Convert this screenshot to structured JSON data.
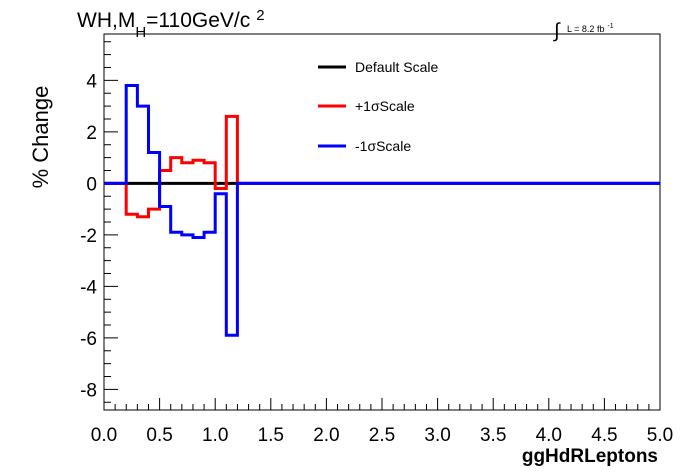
{
  "chart_data": {
    "type": "line",
    "title_main": "WH,M",
    "title_sub": "H",
    "title_rest": "=110GeV/c",
    "title_sup": "2",
    "lumi_label": "L = 8.2 fb",
    "lumi_sup": "-1",
    "integral_symbol": "∫",
    "xlabel": "ggHdRLeptons",
    "ylabel": "% Change",
    "xlim": [
      0,
      5
    ],
    "ylim": [
      -8.8,
      5.8
    ],
    "xticks": [
      "0.0",
      "0.5",
      "1.0",
      "1.5",
      "2.0",
      "2.5",
      "3.0",
      "3.5",
      "4.0",
      "4.5",
      "5.0"
    ],
    "xtick_values": [
      0,
      0.5,
      1.0,
      1.5,
      2.0,
      2.5,
      3.0,
      3.5,
      4.0,
      4.5,
      5.0
    ],
    "yticks": [
      "-8",
      "-6",
      "-4",
      "-2",
      "0",
      "2",
      "4"
    ],
    "ytick_values": [
      -8,
      -6,
      -4,
      -2,
      0,
      2,
      4
    ],
    "legend_placement": "top-center",
    "bin_edges": [
      0,
      0.1,
      0.2,
      0.3,
      0.4,
      0.5,
      0.6,
      0.7,
      0.8,
      0.9,
      1.0,
      1.1,
      1.2,
      1.3,
      5.0
    ],
    "series": [
      {
        "name": "Default Scale",
        "color": "#000000",
        "values": [
          0,
          0,
          0,
          0,
          0,
          0,
          0,
          0,
          0,
          0,
          0,
          0,
          0,
          0
        ]
      },
      {
        "name": "+1σScale",
        "color": "#ff0000",
        "values": [
          0,
          0,
          -1.2,
          -1.3,
          -1.0,
          0.5,
          1.0,
          0.8,
          0.9,
          0.8,
          -0.2,
          2.6,
          0,
          0
        ]
      },
      {
        "name": "-1σScale",
        "color": "#0000ff",
        "values": [
          0,
          0,
          3.8,
          3.0,
          1.2,
          -0.9,
          -1.9,
          -2.0,
          -2.1,
          -1.9,
          -0.4,
          -5.9,
          0,
          0
        ]
      }
    ]
  }
}
